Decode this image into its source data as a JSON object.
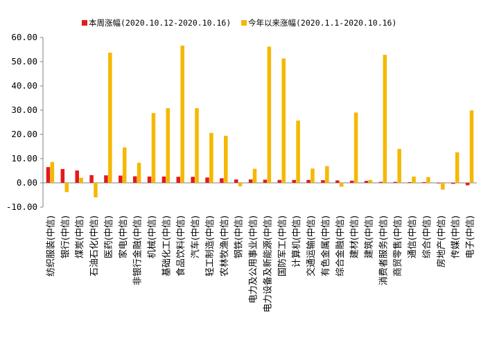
{
  "chart_data": {
    "type": "bar",
    "title": "",
    "xlabel": "",
    "ylabel": "",
    "ylim": [
      -10,
      60
    ],
    "yticks": [
      -10,
      0,
      10,
      20,
      30,
      40,
      50,
      60
    ],
    "ytick_labels": [
      "-10.00",
      "0.00",
      "10.00",
      "20.00",
      "30.00",
      "40.00",
      "50.00",
      "60.00"
    ],
    "grid": false,
    "legend_position": "top-center",
    "categories": [
      "纺织服装(中信)",
      "银行(中信)",
      "煤炭(中信)",
      "石油石化(中信)",
      "医药(中信)",
      "家电(中信)",
      "非银行金融(中信)",
      "机械(中信)",
      "基础化工(中信)",
      "食品饮料(中信)",
      "汽车(中信)",
      "轻工制造(中信)",
      "农林牧渔(中信)",
      "钢铁(中信)",
      "电力及公用事业(中信)",
      "电力设备及新能源(中信)",
      "国防军工(中信)",
      "计算机(中信)",
      "交通运输(中信)",
      "有色金属(中信)",
      "综合金融(中信)",
      "建材(中信)",
      "建筑(中信)",
      "消费者服务(中信)",
      "商贸零售(中信)",
      "通信(中信)",
      "综合(中信)",
      "房地产(中信)",
      "传媒(中信)",
      "电子(中信)"
    ],
    "series": [
      {
        "name": "本周涨幅(2020.10.12-2020.10.16)",
        "color": "#e31a1c",
        "values": [
          6.5,
          5.7,
          5.1,
          3.2,
          3.1,
          3.0,
          2.7,
          2.6,
          2.6,
          2.5,
          2.5,
          2.2,
          1.9,
          1.4,
          1.4,
          1.3,
          1.2,
          1.2,
          1.2,
          1.1,
          1.0,
          0.9,
          0.8,
          0.4,
          0.4,
          0.3,
          0.3,
          -0.1,
          -0.4,
          -1.0
        ]
      },
      {
        "name": "今年以来涨幅(2020.1.1-2020.10.16)",
        "color": "#f5b800",
        "values": [
          8.6,
          -3.8,
          2.1,
          -6.0,
          53.7,
          14.6,
          8.3,
          28.8,
          30.8,
          56.6,
          30.8,
          20.6,
          19.4,
          -1.4,
          5.8,
          56.2,
          51.3,
          25.7,
          5.9,
          6.9,
          -1.6,
          29.0,
          1.2,
          52.8,
          14.0,
          2.6,
          2.4,
          -2.8,
          12.6,
          29.9
        ]
      }
    ]
  }
}
